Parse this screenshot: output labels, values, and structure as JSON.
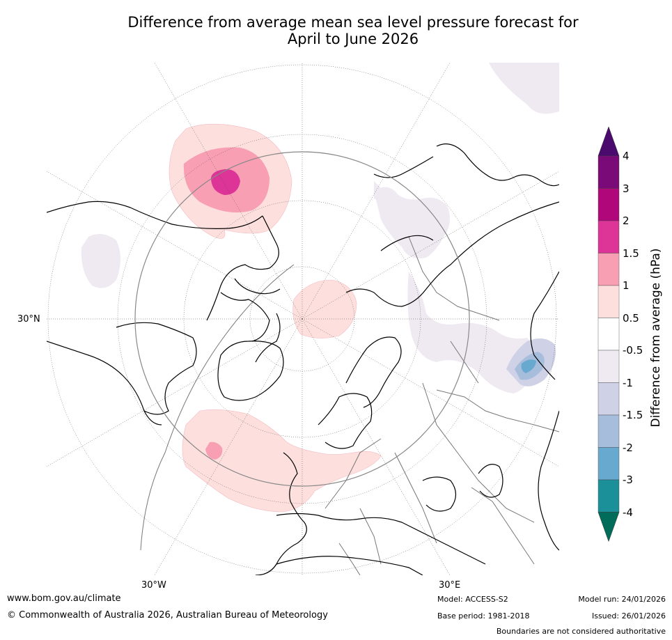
{
  "title_line1": "Difference from average mean sea level pressure forecast for",
  "title_line2": "April to June 2026",
  "map_labels": {
    "lat_30n": "30°N",
    "lon_30w": "30°W",
    "lon_30e": "30°E"
  },
  "colorbar": {
    "title": "Difference from average (hPa)",
    "ticks": [
      "4",
      "3",
      "2",
      "1.5",
      "1",
      "0.5",
      "-0.5",
      "-1",
      "-1.5",
      "-2",
      "-3",
      "-4"
    ],
    "colors": [
      "#4b0a6e",
      "#7a0a78",
      "#b0087b",
      "#dd3497",
      "#f89fb4",
      "#fde0dd",
      "#ffffff",
      "#efe9f2",
      "#cfd1e6",
      "#a6bddb",
      "#67a9cf",
      "#1c9099",
      "#016c59"
    ]
  },
  "footer": {
    "url": "www.bom.gov.au/climate",
    "copyright": "© Commonwealth of Australia 2026, Australian Bureau of Meteorology",
    "model": "Model: ACCESS-S2",
    "base_period": "Base period: 1981-2018",
    "model_run": "Model run: 24/01/2026",
    "issued": "Issued: 26/01/2026",
    "boundaries": "Boundaries are not considered authoritative"
  }
}
